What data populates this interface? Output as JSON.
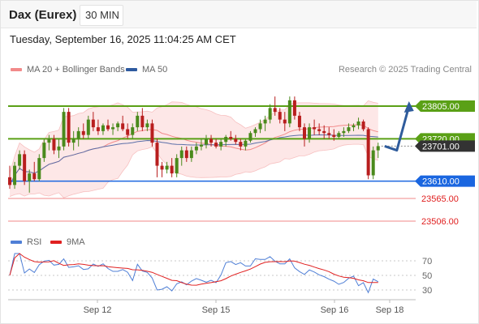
{
  "header": {
    "instrument": "Dax (Eurex)",
    "timeframe": "30 MIN"
  },
  "timestamp": "Tuesday, September 16, 2025 11:04:25 AM CET",
  "credit": "Research © 2025 Trading Central",
  "legend": {
    "bollinger": {
      "label": "MA 20 + Bollinger Bands",
      "color": "#f28a8a"
    },
    "ma50": {
      "label": "MA 50",
      "color": "#2e5aa0"
    }
  },
  "rsi_legend": {
    "rsi": {
      "label": "RSI",
      "color": "#4f7fd6"
    },
    "ma9": {
      "label": "9MA",
      "color": "#e02020"
    }
  },
  "colors": {
    "resistance": "#5aa016",
    "current": "#333333",
    "pivot": "#1a66e0",
    "support": "#f08a8a",
    "arrow": "#2f5c9c"
  },
  "chart_data": [
    {
      "type": "candlestick",
      "x_labels": [
        "Sep 12",
        "Sep 15",
        "Sep 16",
        "Sep 18"
      ],
      "ylim": [
        23485,
        23860
      ],
      "levels": [
        {
          "value": 23805,
          "label": "23805.00",
          "kind": "resistance"
        },
        {
          "value": 23720,
          "label": "23720.00",
          "kind": "resistance"
        },
        {
          "value": 23701,
          "label": "23701.00",
          "kind": "current"
        },
        {
          "value": 23610,
          "label": "23610.00",
          "kind": "pivot"
        },
        {
          "value": 23565,
          "label": "23565.00",
          "kind": "support"
        },
        {
          "value": 23506,
          "label": "23506.00",
          "kind": "support"
        }
      ],
      "candles": [
        [
          23620,
          23650,
          23590,
          23600
        ],
        [
          23600,
          23660,
          23590,
          23650
        ],
        [
          23650,
          23690,
          23640,
          23680
        ],
        [
          23680,
          23690,
          23600,
          23610
        ],
        [
          23610,
          23640,
          23580,
          23630
        ],
        [
          23630,
          23660,
          23610,
          23615
        ],
        [
          23615,
          23680,
          23610,
          23670
        ],
        [
          23670,
          23720,
          23660,
          23710
        ],
        [
          23710,
          23730,
          23690,
          23720
        ],
        [
          23720,
          23730,
          23680,
          23690
        ],
        [
          23690,
          23720,
          23670,
          23700
        ],
        [
          23700,
          23800,
          23690,
          23790
        ],
        [
          23790,
          23800,
          23700,
          23710
        ],
        [
          23710,
          23740,
          23690,
          23720
        ],
        [
          23720,
          23750,
          23700,
          23740
        ],
        [
          23740,
          23760,
          23720,
          23730
        ],
        [
          23730,
          23780,
          23720,
          23770
        ],
        [
          23770,
          23790,
          23740,
          23750
        ],
        [
          23750,
          23770,
          23730,
          23740
        ],
        [
          23740,
          23760,
          23730,
          23755
        ],
        [
          23755,
          23770,
          23740,
          23745
        ],
        [
          23745,
          23760,
          23730,
          23750
        ],
        [
          23750,
          23765,
          23740,
          23760
        ],
        [
          23760,
          23780,
          23740,
          23745
        ],
        [
          23745,
          23760,
          23720,
          23730
        ],
        [
          23730,
          23760,
          23720,
          23750
        ],
        [
          23750,
          23790,
          23740,
          23780
        ],
        [
          23780,
          23800,
          23740,
          23750
        ],
        [
          23750,
          23770,
          23740,
          23760
        ],
        [
          23760,
          23770,
          23700,
          23710
        ],
        [
          23710,
          23720,
          23620,
          23650
        ],
        [
          23650,
          23660,
          23620,
          23640
        ],
        [
          23640,
          23660,
          23630,
          23650
        ],
        [
          23650,
          23670,
          23620,
          23630
        ],
        [
          23630,
          23680,
          23620,
          23670
        ],
        [
          23670,
          23700,
          23650,
          23690
        ],
        [
          23690,
          23700,
          23660,
          23670
        ],
        [
          23670,
          23700,
          23660,
          23690
        ],
        [
          23690,
          23710,
          23680,
          23700
        ],
        [
          23700,
          23720,
          23690,
          23705
        ],
        [
          23705,
          23730,
          23695,
          23720
        ],
        [
          23720,
          23730,
          23700,
          23710
        ],
        [
          23710,
          23720,
          23695,
          23700
        ],
        [
          23700,
          23720,
          23690,
          23712
        ],
        [
          23712,
          23730,
          23700,
          23725
        ],
        [
          23725,
          23740,
          23715,
          23720
        ],
        [
          23720,
          23730,
          23705,
          23712
        ],
        [
          23712,
          23720,
          23690,
          23700
        ],
        [
          23700,
          23720,
          23690,
          23715
        ],
        [
          23715,
          23740,
          23710,
          23735
        ],
        [
          23735,
          23750,
          23725,
          23745
        ],
        [
          23745,
          23770,
          23735,
          23760
        ],
        [
          23760,
          23780,
          23740,
          23770
        ],
        [
          23770,
          23810,
          23760,
          23800
        ],
        [
          23800,
          23830,
          23780,
          23790
        ],
        [
          23790,
          23800,
          23760,
          23770
        ],
        [
          23770,
          23790,
          23740,
          23760
        ],
        [
          23760,
          23830,
          23750,
          23820
        ],
        [
          23820,
          23830,
          23770,
          23780
        ],
        [
          23780,
          23790,
          23740,
          23750
        ],
        [
          23750,
          23760,
          23700,
          23720
        ],
        [
          23720,
          23760,
          23710,
          23750
        ],
        [
          23750,
          23770,
          23730,
          23745
        ],
        [
          23745,
          23760,
          23730,
          23740
        ],
        [
          23740,
          23755,
          23720,
          23735
        ],
        [
          23735,
          23750,
          23720,
          23730
        ],
        [
          23730,
          23745,
          23715,
          23725
        ],
        [
          23725,
          23740,
          23720,
          23735
        ],
        [
          23735,
          23750,
          23725,
          23740
        ],
        [
          23740,
          23760,
          23735,
          23750
        ],
        [
          23750,
          23760,
          23740,
          23755
        ],
        [
          23755,
          23775,
          23745,
          23765
        ],
        [
          23765,
          23770,
          23740,
          23745
        ],
        [
          23745,
          23750,
          23615,
          23625
        ],
        [
          23625,
          23700,
          23615,
          23690
        ],
        [
          23690,
          23710,
          23670,
          23701
        ]
      ],
      "projection": [
        [
          23701,
          0
        ],
        [
          23690,
          1
        ],
        [
          23805,
          2
        ]
      ]
    },
    {
      "type": "line",
      "title": "RSI",
      "y_ticks": [
        70,
        50,
        30
      ],
      "ylim": [
        20,
        80
      ]
    }
  ]
}
